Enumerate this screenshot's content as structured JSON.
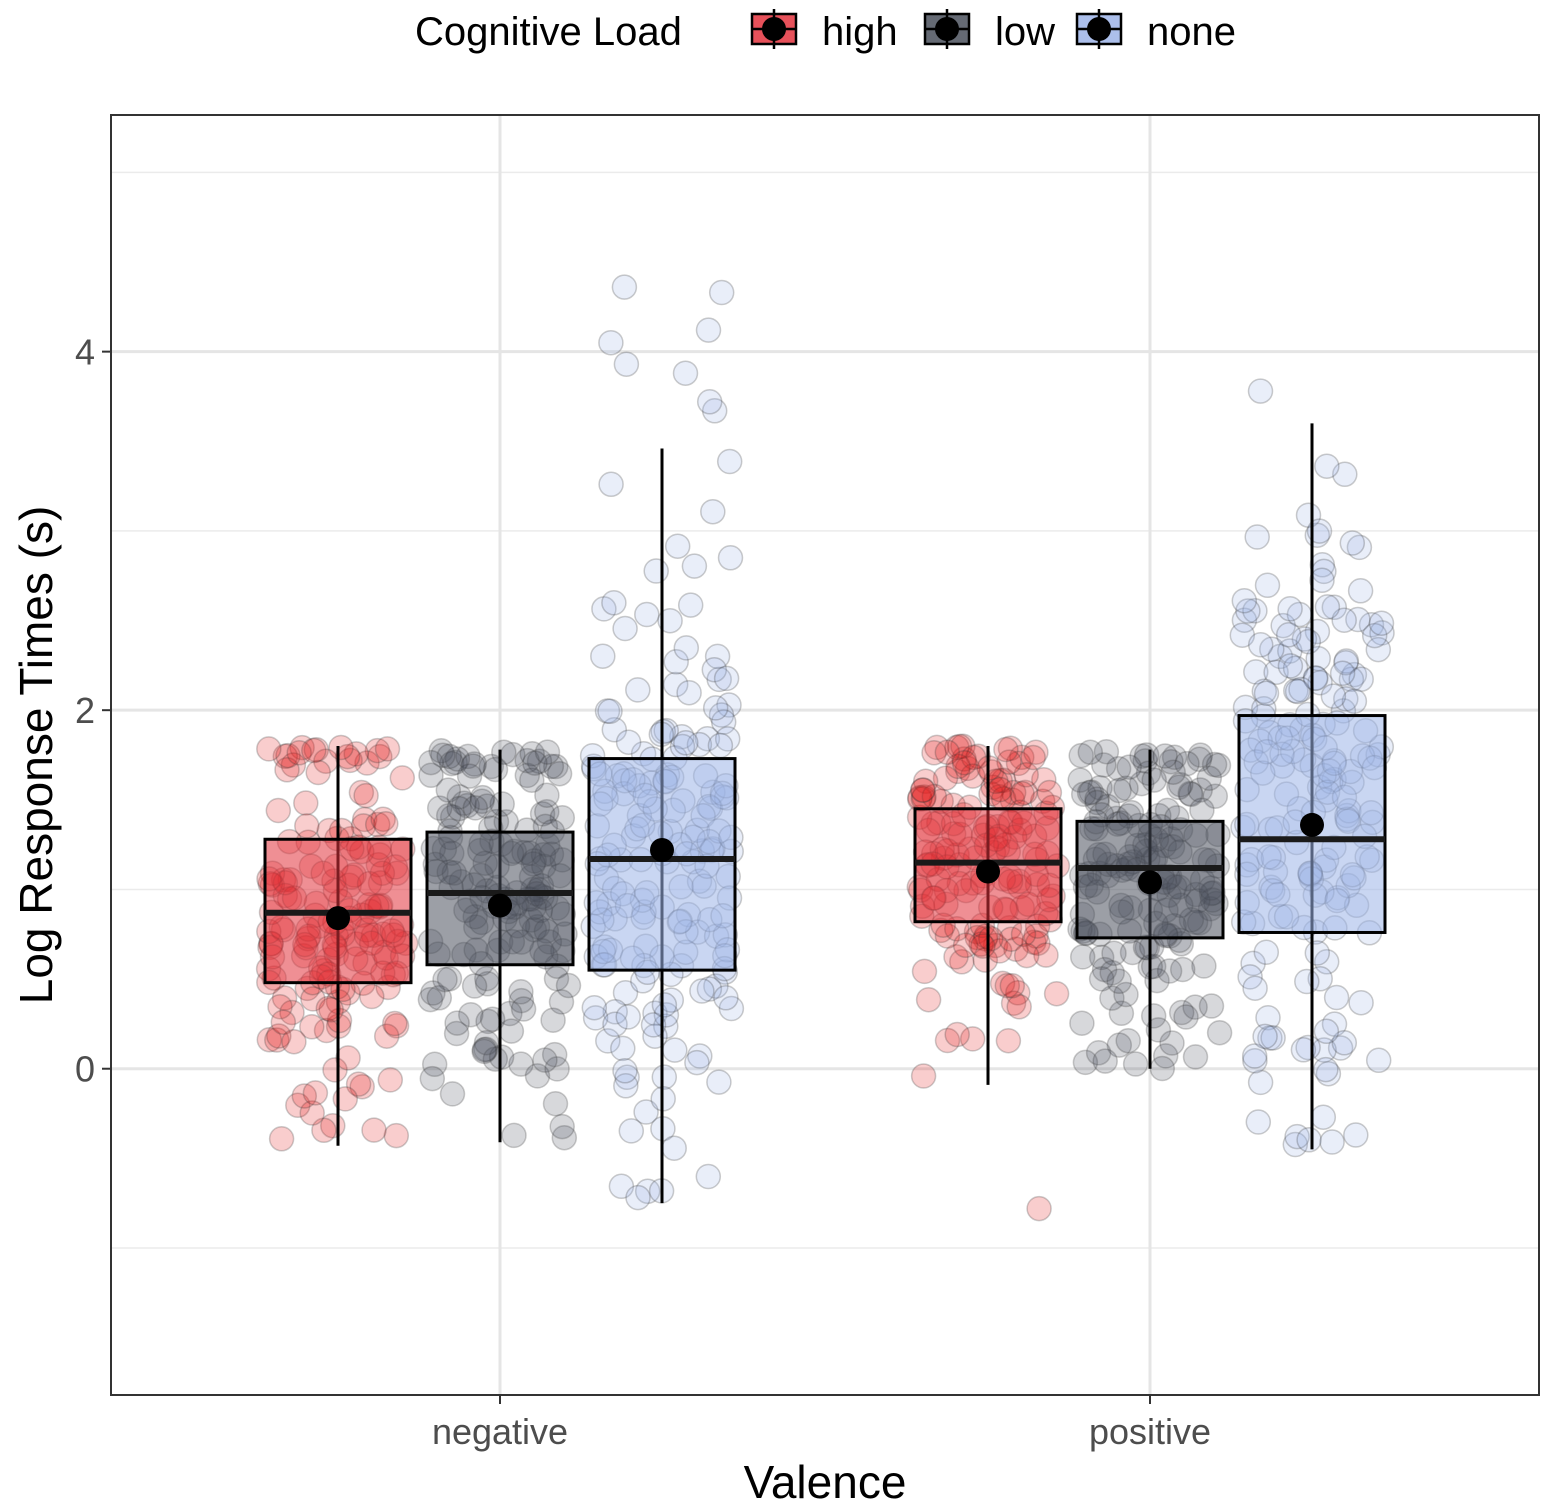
{
  "chart_data": {
    "type": "boxplot",
    "title": "",
    "xlabel": "Valence",
    "ylabel": "Log Response Times (s)",
    "ylim": [
      -1.82,
      5.32
    ],
    "y_ticks": [
      0,
      2,
      4
    ],
    "y_tick_labels": [
      "0",
      "2",
      "4"
    ],
    "y_minor_gridlines": [
      -1,
      1,
      3,
      5
    ],
    "grid": true,
    "categories": [
      "negative",
      "positive"
    ],
    "legend": {
      "title": "Cognitive Load",
      "position": "top",
      "entries": [
        "high",
        "low",
        "none"
      ]
    },
    "series": [
      {
        "name": "high",
        "color": "#E41A1C",
        "box_fill": "#E2333D",
        "stats": [
          {
            "category": "negative",
            "whisker_low": -0.43,
            "q1": 0.48,
            "median": 0.87,
            "q3": 1.28,
            "whisker_high": 1.8,
            "mean": 0.84
          },
          {
            "category": "positive",
            "whisker_low": -0.09,
            "q1": 0.82,
            "median": 1.15,
            "q3": 1.45,
            "whisker_high": 1.8,
            "mean": 1.1
          }
        ],
        "outliers": [
          {
            "category": "positive",
            "value": -0.78
          }
        ]
      },
      {
        "name": "low",
        "color": "#4A4F5A",
        "box_fill": "#4A505C",
        "stats": [
          {
            "category": "negative",
            "whisker_low": -0.41,
            "q1": 0.58,
            "median": 0.98,
            "q3": 1.32,
            "whisker_high": 1.78,
            "mean": 0.91
          },
          {
            "category": "positive",
            "whisker_low": 0.0,
            "q1": 0.73,
            "median": 1.12,
            "q3": 1.38,
            "whisker_high": 1.78,
            "mean": 1.04
          }
        ],
        "outliers": []
      },
      {
        "name": "none",
        "color": "#9AB2E4",
        "box_fill": "#9DB4E7",
        "stats": [
          {
            "category": "negative",
            "whisker_low": -0.75,
            "q1": 0.55,
            "median": 1.17,
            "q3": 1.73,
            "whisker_high": 3.46,
            "mean": 1.22
          },
          {
            "category": "positive",
            "whisker_low": -0.45,
            "q1": 0.76,
            "median": 1.28,
            "q3": 1.97,
            "whisker_high": 3.6,
            "mean": 1.36
          }
        ],
        "outliers": [
          {
            "category": "negative",
            "value": 3.67
          },
          {
            "category": "negative",
            "value": 3.72
          },
          {
            "category": "negative",
            "value": 3.88
          },
          {
            "category": "negative",
            "value": 3.93
          },
          {
            "category": "negative",
            "value": 4.05
          },
          {
            "category": "negative",
            "value": 4.12
          },
          {
            "category": "negative",
            "value": 4.33
          },
          {
            "category": "negative",
            "value": 4.36
          },
          {
            "category": "positive",
            "value": 3.78
          }
        ]
      }
    ]
  }
}
